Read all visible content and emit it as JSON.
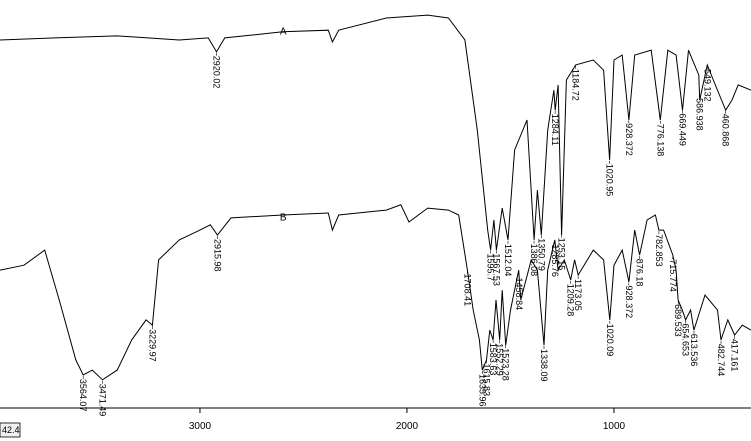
{
  "chart_data": {
    "type": "line",
    "xlim": [
      3966,
      338
    ],
    "ylim": [
      0,
      100
    ],
    "xticks": [
      3000,
      2000,
      1000
    ],
    "readout": "42.4",
    "series": [
      {
        "name": "A",
        "color": "#000000",
        "x": [
          3966,
          3700,
          3400,
          3100,
          2960,
          2920,
          2880,
          2600,
          2380,
          2360,
          2330,
          2100,
          1900,
          1800,
          1720,
          1660,
          1610,
          1596,
          1580,
          1568,
          1540,
          1512,
          1480,
          1420,
          1386,
          1370,
          1351,
          1320,
          1290,
          1284,
          1270,
          1253,
          1230,
          1185,
          1100,
          1050,
          1021,
          1000,
          960,
          928,
          900,
          820,
          776,
          740,
          700,
          669,
          640,
          590,
          586,
          549,
          520,
          460,
          430,
          400,
          338
        ],
        "values": [
          90.2,
          90.7,
          91.2,
          90.2,
          90.7,
          87.3,
          90.7,
          92.2,
          92.6,
          89.7,
          92.6,
          95.6,
          96.3,
          95.6,
          90.2,
          68.1,
          43.6,
          38.7,
          46.1,
          38.7,
          49.0,
          41.2,
          63.2,
          70.6,
          41.2,
          53.4,
          42.4,
          68.1,
          77.9,
          73.0,
          79.2,
          42.4,
          80.4,
          84.1,
          85.3,
          82.8,
          60.8,
          85.3,
          86.5,
          70.6,
          86.5,
          87.7,
          70.6,
          87.7,
          86.5,
          73.0,
          87.7,
          81.6,
          75.5,
          84.1,
          80.4,
          73.0,
          75.5,
          79.2,
          77.9
        ],
        "peaks": [
          2920.02,
          1595.7,
          1567.53,
          1512.04,
          1386.08,
          1350.79,
          1284.11,
          1253.15,
          1184.72,
          1020.95,
          928.372,
          776.138,
          669.449,
          586.938,
          549.132,
          460.868
        ]
      },
      {
        "name": "B",
        "color": "#000000",
        "x": [
          3966,
          3850,
          3750,
          3680,
          3600,
          3564,
          3520,
          3471,
          3400,
          3330,
          3260,
          3230,
          3200,
          3100,
          3000,
          2950,
          2916,
          2850,
          2600,
          2380,
          2360,
          2330,
          2100,
          2030,
          1990,
          1900,
          1800,
          1750,
          1708,
          1680,
          1650,
          1636,
          1616,
          1600,
          1584,
          1570,
          1552,
          1540,
          1523,
          1500,
          1460,
          1450,
          1400,
          1370,
          1338,
          1320,
          1286,
          1270,
          1240,
          1209,
          1190,
          1173,
          1100,
          1050,
          1020,
          1000,
          960,
          928,
          900,
          876,
          840,
          800,
          783,
          760,
          716,
          700,
          690,
          670,
          654,
          630,
          614,
          560,
          500,
          483,
          450,
          417,
          380,
          338
        ],
        "values": [
          33.8,
          35.0,
          38.7,
          26.5,
          11.8,
          8.1,
          9.3,
          6.9,
          9.3,
          16.7,
          21.6,
          20.3,
          36.3,
          41.2,
          43.6,
          44.9,
          42.4,
          46.6,
          47.3,
          47.8,
          43.6,
          47.3,
          48.5,
          49.8,
          45.6,
          49.0,
          48.5,
          47.3,
          33.8,
          24.0,
          16.7,
          9.3,
          11.8,
          19.1,
          16.7,
          26.5,
          16.7,
          28.9,
          15.4,
          24.0,
          33.8,
          26.5,
          36.3,
          33.8,
          15.4,
          33.8,
          41.2,
          33.8,
          36.3,
          31.4,
          36.3,
          32.6,
          38.7,
          36.3,
          21.6,
          35.0,
          38.7,
          30.9,
          43.6,
          37.5,
          46.1,
          47.3,
          43.6,
          43.6,
          37.5,
          33.8,
          26.5,
          24.0,
          21.6,
          24.0,
          19.1,
          27.7,
          24.0,
          16.7,
          21.6,
          17.9,
          20.3,
          19.1
        ],
        "peaks": [
          3564.07,
          3471.49,
          3229.97,
          2915.98,
          1708.41,
          1635.96,
          1615.83,
          1583.63,
          1552.29,
          1523.28,
          1458.84,
          1338.09,
          1285.76,
          1209.28,
          1173.05,
          1020.09,
          928.372,
          876.18,
          782.853,
          715.774,
          689.533,
          654.653,
          613.536,
          482.744,
          417.161
        ]
      }
    ]
  }
}
